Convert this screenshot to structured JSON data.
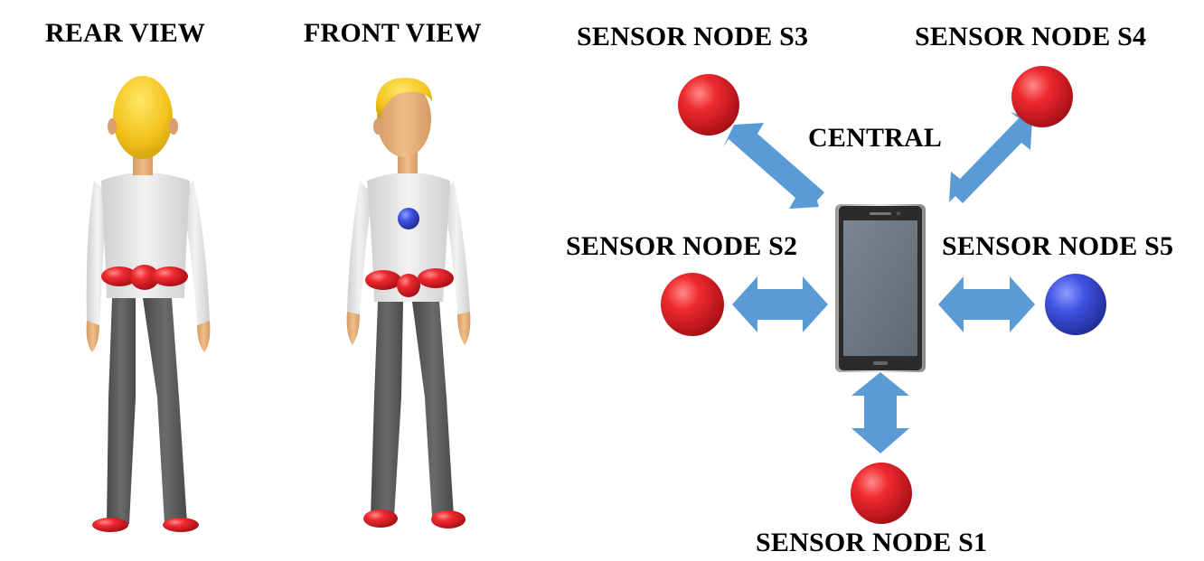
{
  "views": {
    "rear": "REAR VIEW",
    "front": "FRONT VIEW"
  },
  "network": {
    "central": "CENTRAL",
    "nodes": {
      "s1": "SENSOR NODE S1",
      "s2": "SENSOR NODE S2",
      "s3": "SENSOR NODE S3",
      "s4": "SENSOR NODE S4",
      "s5": "SENSOR NODE S5"
    }
  },
  "colors": {
    "sensor_red": "#e8202a",
    "sensor_blue": "#3d4fe0",
    "arrow_blue": "#5b9bd5",
    "phone_screen": "#6b7680",
    "phone_body": "#2b2b2b",
    "hair": "#f2c21a",
    "skin": "#e8b07a",
    "shirt": "#e6e6e6",
    "pants": "#5d5d5d"
  }
}
